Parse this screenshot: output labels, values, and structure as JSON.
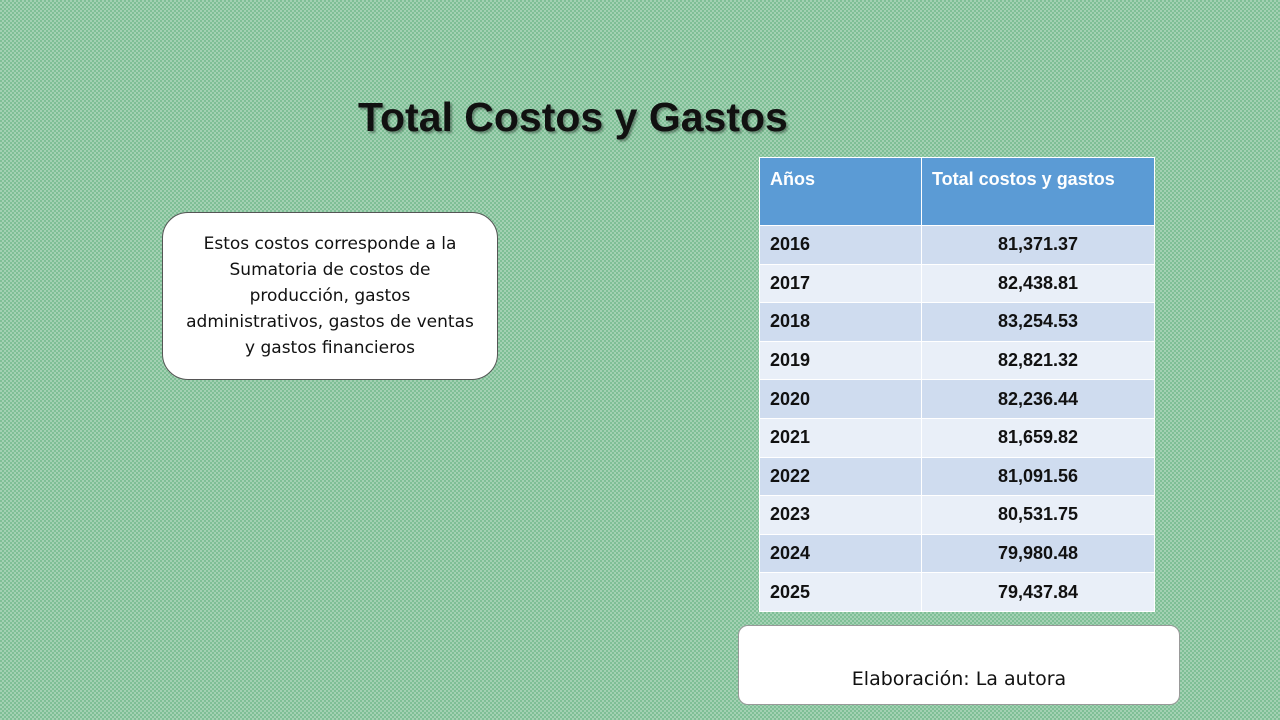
{
  "title": "Total Costos y Gastos",
  "note": "Estos costos corresponde a la Sumatoria de costos de producción, gastos administrativos, gastos de ventas y gastos financieros",
  "table": {
    "headers": [
      "Años",
      "Total costos y gastos"
    ],
    "rows": [
      [
        "2016",
        "81,371.37"
      ],
      [
        "2017",
        "82,438.81"
      ],
      [
        "2018",
        "83,254.53"
      ],
      [
        "2019",
        "82,821.32"
      ],
      [
        "2020",
        "82,236.44"
      ],
      [
        "2021",
        "81,659.82"
      ],
      [
        "2022",
        "81,091.56"
      ],
      [
        "2023",
        "80,531.75"
      ],
      [
        "2024",
        "79,980.48"
      ],
      [
        "2025",
        "79,437.84"
      ]
    ]
  },
  "source": "Elaboración: La autora",
  "colors": {
    "background": "#7fbf96",
    "header": "#5b9bd5",
    "row_odd": "#cfdcef",
    "row_even": "#e9eff8"
  }
}
